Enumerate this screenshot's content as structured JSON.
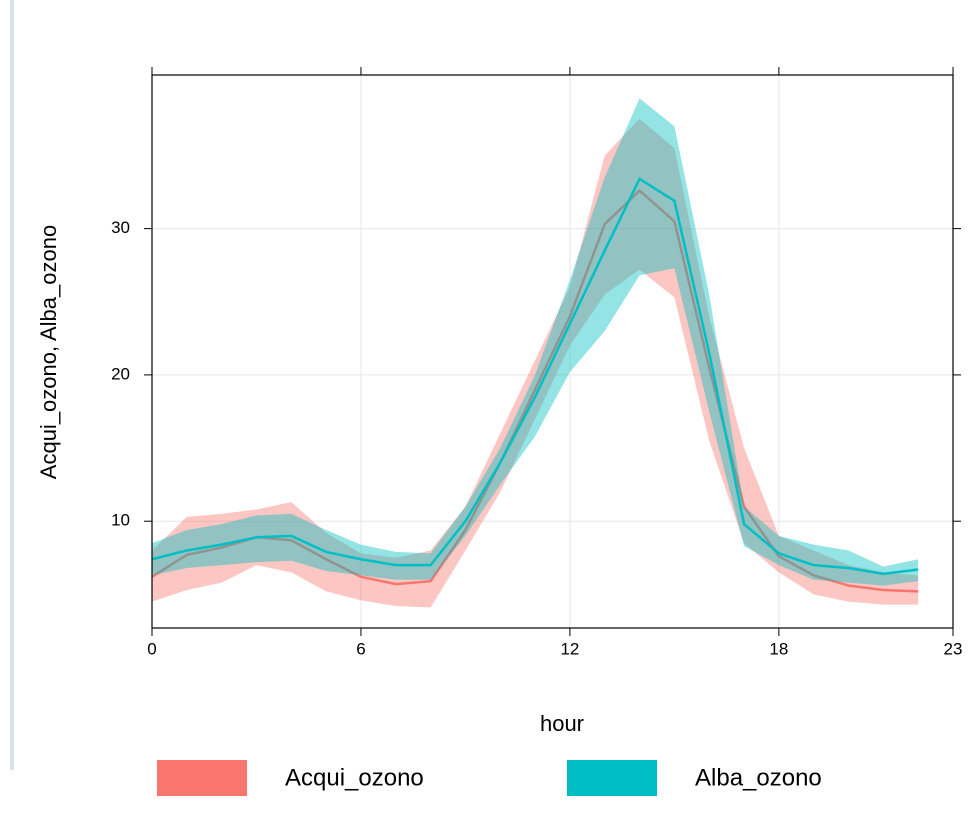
{
  "chart_data": {
    "type": "line-band",
    "x_label": "hour",
    "y_label": "Acqui_ozono, Alba_ozono",
    "x": [
      0,
      1,
      2,
      3,
      4,
      5,
      6,
      7,
      8,
      9,
      10,
      11,
      12,
      13,
      14,
      15,
      16,
      17,
      18,
      19,
      20,
      21,
      22
    ],
    "xlim": [
      0,
      23
    ],
    "xticks": [
      0,
      6,
      12,
      18,
      23
    ],
    "ylim": [
      2.7,
      40.5
    ],
    "yticks": [
      10,
      20,
      30
    ],
    "grid": true,
    "legend": "bottom",
    "series": [
      {
        "name": "Acqui_ozono",
        "color": "#F8766D",
        "values": [
          6.2,
          7.7,
          8.2,
          8.9,
          8.7,
          7.4,
          6.2,
          5.7,
          5.9,
          9.4,
          14,
          19,
          24,
          30.3,
          32.6,
          30.5,
          20.5,
          11,
          7.6,
          6.3,
          5.6,
          5.3,
          5.2
        ],
        "lower": [
          4.5,
          5.3,
          5.8,
          7,
          6.5,
          5.2,
          4.6,
          4.2,
          4.1,
          8,
          12,
          17,
          22,
          25.5,
          27.2,
          25.3,
          15.5,
          8.5,
          6.5,
          5,
          4.5,
          4.3,
          4.3
        ],
        "upper": [
          8,
          10.3,
          10.5,
          10.8,
          11.3,
          9.2,
          7.8,
          7.5,
          8,
          11,
          16,
          21,
          26,
          35,
          37.5,
          35.5,
          24,
          15,
          9,
          8,
          7,
          6.5,
          6.3
        ]
      },
      {
        "name": "Alba_ozono",
        "color": "#00BFC4",
        "values": [
          7.4,
          8,
          8.4,
          8.9,
          9,
          7.9,
          7.4,
          7,
          7,
          10,
          14,
          18.5,
          23.5,
          28.5,
          33.4,
          31.9,
          21.5,
          9.8,
          7.8,
          7,
          6.8,
          6.4,
          6.7
        ],
        "lower": [
          6.3,
          6.8,
          7,
          7.2,
          7.3,
          6.6,
          6.3,
          6,
          6,
          9,
          12.5,
          15.8,
          20.2,
          23,
          26.8,
          27.3,
          17.5,
          8.3,
          7,
          6,
          5.8,
          5.6,
          5.9
        ],
        "upper": [
          8.5,
          9.4,
          9.8,
          10.4,
          10.5,
          9.4,
          8.4,
          7.9,
          7.8,
          11,
          15,
          20,
          26.5,
          33.5,
          38.9,
          37,
          25.5,
          11,
          9,
          8.4,
          8,
          6.9,
          7.4
        ]
      }
    ]
  }
}
